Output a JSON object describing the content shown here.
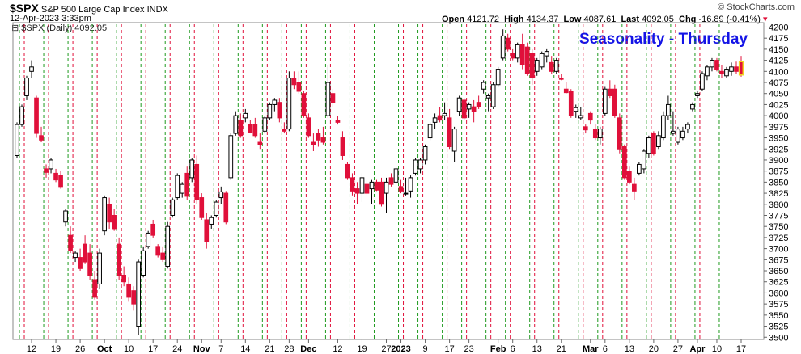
{
  "header": {
    "symbol": "$SPX",
    "name": "S&P 500 Large Cap Index",
    "exchange": "INDX",
    "datetime": "12-Apr-2023 3:33pm",
    "open_label": "Open",
    "open": "4121.72",
    "high_label": "High",
    "high": "4134.37",
    "low_label": "Low",
    "low": "4087.61",
    "last_label": "Last",
    "last": "4092.05",
    "chg_label": "Chg",
    "chg": "-16.89 (-0.41%)",
    "watermark": "© StockCharts.com"
  },
  "legend": {
    "text": "$SPX (Daily) 4092.05"
  },
  "chart_data": {
    "type": "candlestick",
    "title": "Seasonality - Thursday",
    "ylim": [
      3495,
      4210
    ],
    "y_ticks": [
      3500,
      3525,
      3550,
      3575,
      3600,
      3625,
      3650,
      3675,
      3700,
      3725,
      3750,
      3775,
      3800,
      3825,
      3850,
      3875,
      3900,
      3925,
      3950,
      3975,
      4000,
      4025,
      4050,
      4075,
      4100,
      4125,
      4150,
      4175,
      4200
    ],
    "x_ticks": [
      {
        "label": "12",
        "bar": 3,
        "bold": false
      },
      {
        "label": "19",
        "bar": 8,
        "bold": false
      },
      {
        "label": "26",
        "bar": 13,
        "bold": false
      },
      {
        "label": "Oct",
        "bar": 18,
        "bold": true
      },
      {
        "label": "10",
        "bar": 23,
        "bold": false
      },
      {
        "label": "17",
        "bar": 28,
        "bold": false
      },
      {
        "label": "24",
        "bar": 33,
        "bold": false
      },
      {
        "label": "Nov",
        "bar": 38,
        "bold": true
      },
      {
        "label": "7",
        "bar": 42,
        "bold": false
      },
      {
        "label": "14",
        "bar": 47,
        "bold": false
      },
      {
        "label": "21",
        "bar": 52,
        "bold": false
      },
      {
        "label": "28",
        "bar": 56,
        "bold": false
      },
      {
        "label": "Dec",
        "bar": 60,
        "bold": true
      },
      {
        "label": "12",
        "bar": 66,
        "bold": false
      },
      {
        "label": "19",
        "bar": 71,
        "bold": false
      },
      {
        "label": "27",
        "bar": 76,
        "bold": false
      },
      {
        "label": "2023",
        "bar": 79,
        "bold": true
      },
      {
        "label": "9",
        "bar": 84,
        "bold": false
      },
      {
        "label": "17",
        "bar": 89,
        "bold": false
      },
      {
        "label": "23",
        "bar": 93,
        "bold": false
      },
      {
        "label": "Feb",
        "bar": 99,
        "bold": true
      },
      {
        "label": "6",
        "bar": 102,
        "bold": false
      },
      {
        "label": "13",
        "bar": 107,
        "bold": false
      },
      {
        "label": "21",
        "bar": 112,
        "bold": false
      },
      {
        "label": "Mar",
        "bar": 118,
        "bold": true
      },
      {
        "label": "6",
        "bar": 121,
        "bold": false
      },
      {
        "label": "13",
        "bar": 126,
        "bold": false
      },
      {
        "label": "20",
        "bar": 131,
        "bold": false
      },
      {
        "label": "27",
        "bar": 136,
        "bold": false
      },
      {
        "label": "Apr",
        "bar": 140,
        "bold": true
      },
      {
        "label": "10",
        "bar": 144,
        "bold": false
      },
      {
        "label": "17",
        "bar": 149,
        "bold": false
      }
    ],
    "green_line_bars": [
      1,
      6,
      11,
      16,
      21,
      26,
      31,
      36,
      41,
      46,
      51,
      55,
      59,
      64,
      69,
      74,
      79,
      83,
      88,
      92,
      97,
      101,
      106,
      111,
      116,
      120,
      125,
      130,
      135,
      140,
      145
    ],
    "red_line_bars": [
      2,
      7,
      12,
      17,
      22,
      27,
      32,
      37,
      42,
      47,
      52,
      56,
      60,
      65,
      70,
      75,
      80,
      84,
      89,
      93,
      98,
      102,
      107,
      112,
      117,
      121,
      126,
      131,
      136,
      141
    ],
    "candles": [
      {
        "o": 3910,
        "h": 3985,
        "l": 3905,
        "c": 3980
      },
      {
        "o": 3980,
        "h": 4025,
        "l": 3975,
        "c": 4020
      },
      {
        "o": 4045,
        "h": 4090,
        "l": 4035,
        "c": 4085
      },
      {
        "o": 4100,
        "h": 4125,
        "l": 4085,
        "c": 4110
      },
      {
        "o": 4040,
        "h": 4045,
        "l": 3950,
        "c": 3960
      },
      {
        "o": 3955,
        "h": 3975,
        "l": 3940,
        "c": 3945
      },
      {
        "o": 3880,
        "h": 3890,
        "l": 3860,
        "c": 3872
      },
      {
        "o": 3880,
        "h": 3905,
        "l": 3870,
        "c": 3900
      },
      {
        "o": 3870,
        "h": 3880,
        "l": 3850,
        "c": 3855
      },
      {
        "o": 3865,
        "h": 3875,
        "l": 3835,
        "c": 3840
      },
      {
        "o": 3760,
        "h": 3790,
        "l": 3750,
        "c": 3785
      },
      {
        "o": 3730,
        "h": 3750,
        "l": 3690,
        "c": 3695
      },
      {
        "o": 3680,
        "h": 3695,
        "l": 3670,
        "c": 3690
      },
      {
        "o": 3680,
        "h": 3700,
        "l": 3650,
        "c": 3655
      },
      {
        "o": 3710,
        "h": 3730,
        "l": 3665,
        "c": 3670
      },
      {
        "o": 3690,
        "h": 3710,
        "l": 3630,
        "c": 3640
      },
      {
        "o": 3630,
        "h": 3650,
        "l": 3585,
        "c": 3590
      },
      {
        "o": 3620,
        "h": 3700,
        "l": 3610,
        "c": 3690
      },
      {
        "o": 3740,
        "h": 3820,
        "l": 3730,
        "c": 3815
      },
      {
        "o": 3800,
        "h": 3815,
        "l": 3745,
        "c": 3760
      },
      {
        "o": 3775,
        "h": 3790,
        "l": 3740,
        "c": 3745
      },
      {
        "o": 3710,
        "h": 3725,
        "l": 3630,
        "c": 3640
      },
      {
        "o": 3640,
        "h": 3660,
        "l": 3615,
        "c": 3625
      },
      {
        "o": 3620,
        "h": 3635,
        "l": 3580,
        "c": 3590
      },
      {
        "o": 3605,
        "h": 3615,
        "l": 3560,
        "c": 3575
      },
      {
        "o": 3525,
        "h": 3675,
        "l": 3505,
        "c": 3670
      },
      {
        "o": 3640,
        "h": 3705,
        "l": 3635,
        "c": 3695
      },
      {
        "o": 3705,
        "h": 3740,
        "l": 3700,
        "c": 3735
      },
      {
        "o": 3755,
        "h": 3765,
        "l": 3725,
        "c": 3730
      },
      {
        "o": 3705,
        "h": 3710,
        "l": 3680,
        "c": 3685
      },
      {
        "o": 3690,
        "h": 3705,
        "l": 3670,
        "c": 3675
      },
      {
        "o": 3660,
        "h": 3760,
        "l": 3655,
        "c": 3750
      },
      {
        "o": 3775,
        "h": 3815,
        "l": 3770,
        "c": 3810
      },
      {
        "o": 3815,
        "h": 3870,
        "l": 3810,
        "c": 3865
      },
      {
        "o": 3825,
        "h": 3850,
        "l": 3815,
        "c": 3845
      },
      {
        "o": 3870,
        "h": 3885,
        "l": 3810,
        "c": 3818
      },
      {
        "o": 3860,
        "h": 3905,
        "l": 3850,
        "c": 3900
      },
      {
        "o": 3890,
        "h": 3910,
        "l": 3800,
        "c": 3810
      },
      {
        "o": 3815,
        "h": 3825,
        "l": 3765,
        "c": 3770
      },
      {
        "o": 3765,
        "h": 3780,
        "l": 3700,
        "c": 3715
      },
      {
        "o": 3755,
        "h": 3775,
        "l": 3745,
        "c": 3770
      },
      {
        "o": 3775,
        "h": 3810,
        "l": 3770,
        "c": 3805
      },
      {
        "o": 3815,
        "h": 3840,
        "l": 3800,
        "c": 3828
      },
      {
        "o": 3825,
        "h": 3830,
        "l": 3755,
        "c": 3760
      },
      {
        "o": 3860,
        "h": 3960,
        "l": 3855,
        "c": 3955
      },
      {
        "o": 3960,
        "h": 4010,
        "l": 3955,
        "c": 4000
      },
      {
        "o": 3990,
        "h": 4005,
        "l": 3950,
        "c": 3955
      },
      {
        "o": 3995,
        "h": 4015,
        "l": 3985,
        "c": 4005
      },
      {
        "o": 3980,
        "h": 3990,
        "l": 3960,
        "c": 3962
      },
      {
        "o": 3980,
        "h": 3995,
        "l": 3950,
        "c": 3955
      },
      {
        "o": 3940,
        "h": 3960,
        "l": 3925,
        "c": 3935
      },
      {
        "o": 3965,
        "h": 4000,
        "l": 3960,
        "c": 3995
      },
      {
        "o": 3995,
        "h": 4030,
        "l": 3990,
        "c": 4025
      },
      {
        "o": 4025,
        "h": 4040,
        "l": 4010,
        "c": 4035
      },
      {
        "o": 4030,
        "h": 4040,
        "l": 3985,
        "c": 3995
      },
      {
        "o": 3970,
        "h": 3985,
        "l": 3960,
        "c": 3965
      },
      {
        "o": 3970,
        "h": 4100,
        "l": 3965,
        "c": 4085
      },
      {
        "o": 4085,
        "h": 4100,
        "l": 4060,
        "c": 4070
      },
      {
        "o": 4075,
        "h": 4100,
        "l": 4050,
        "c": 4055
      },
      {
        "o": 4050,
        "h": 4055,
        "l": 3995,
        "c": 4000
      },
      {
        "o": 3995,
        "h": 4005,
        "l": 3950,
        "c": 3955
      },
      {
        "o": 3940,
        "h": 3960,
        "l": 3920,
        "c": 3935
      },
      {
        "o": 3960,
        "h": 3970,
        "l": 3930,
        "c": 3945
      },
      {
        "o": 3950,
        "h": 3975,
        "l": 3935,
        "c": 3940
      },
      {
        "o": 4000,
        "h": 4115,
        "l": 3995,
        "c": 4075
      },
      {
        "o": 4050,
        "h": 4060,
        "l": 4020,
        "c": 4030
      },
      {
        "o": 3990,
        "h": 4000,
        "l": 3980,
        "c": 3985
      },
      {
        "o": 3950,
        "h": 3965,
        "l": 3900,
        "c": 3910
      },
      {
        "o": 3890,
        "h": 3895,
        "l": 3855,
        "c": 3860
      },
      {
        "o": 3860,
        "h": 3870,
        "l": 3820,
        "c": 3830
      },
      {
        "o": 3835,
        "h": 3850,
        "l": 3800,
        "c": 3825
      },
      {
        "o": 3825,
        "h": 3870,
        "l": 3805,
        "c": 3860
      },
      {
        "o": 3845,
        "h": 3855,
        "l": 3820,
        "c": 3825
      },
      {
        "o": 3835,
        "h": 3855,
        "l": 3800,
        "c": 3850
      },
      {
        "o": 3850,
        "h": 3855,
        "l": 3830,
        "c": 3832
      },
      {
        "o": 3850,
        "h": 3860,
        "l": 3795,
        "c": 3800
      },
      {
        "o": 3825,
        "h": 3860,
        "l": 3780,
        "c": 3850
      },
      {
        "o": 3860,
        "h": 3870,
        "l": 3840,
        "c": 3845
      },
      {
        "o": 3850,
        "h": 3885,
        "l": 3845,
        "c": 3880
      },
      {
        "o": 3840,
        "h": 3855,
        "l": 3825,
        "c": 3830
      },
      {
        "o": 3825,
        "h": 3860,
        "l": 3820,
        "c": 3825
      },
      {
        "o": 3830,
        "h": 3865,
        "l": 3815,
        "c": 3860
      },
      {
        "o": 3870,
        "h": 3905,
        "l": 3865,
        "c": 3900
      },
      {
        "o": 3880,
        "h": 3905,
        "l": 3870,
        "c": 3900
      },
      {
        "o": 3900,
        "h": 3935,
        "l": 3890,
        "c": 3930
      },
      {
        "o": 3950,
        "h": 3985,
        "l": 3945,
        "c": 3980
      },
      {
        "o": 3985,
        "h": 4005,
        "l": 3970,
        "c": 3995
      },
      {
        "o": 4000,
        "h": 4020,
        "l": 3985,
        "c": 3990
      },
      {
        "o": 4000,
        "h": 4030,
        "l": 3990,
        "c": 4005
      },
      {
        "o": 3995,
        "h": 4015,
        "l": 3925,
        "c": 3930
      },
      {
        "o": 3920,
        "h": 3975,
        "l": 3895,
        "c": 3970
      },
      {
        "o": 4010,
        "h": 4045,
        "l": 4000,
        "c": 4040
      },
      {
        "o": 4035,
        "h": 4040,
        "l": 3990,
        "c": 3995
      },
      {
        "o": 4015,
        "h": 4030,
        "l": 3995,
        "c": 4025
      },
      {
        "o": 4020,
        "h": 4035,
        "l": 3985,
        "c": 4010
      },
      {
        "o": 4030,
        "h": 4045,
        "l": 4015,
        "c": 4020
      },
      {
        "o": 4060,
        "h": 4080,
        "l": 4050,
        "c": 4075
      },
      {
        "o": 4040,
        "h": 4050,
        "l": 4010,
        "c": 4045
      },
      {
        "o": 4020,
        "h": 4075,
        "l": 4015,
        "c": 4070
      },
      {
        "o": 4070,
        "h": 4110,
        "l": 4065,
        "c": 4105
      },
      {
        "o": 4130,
        "h": 4195,
        "l": 4125,
        "c": 4180
      },
      {
        "o": 4175,
        "h": 4185,
        "l": 4145,
        "c": 4150
      },
      {
        "o": 4140,
        "h": 4150,
        "l": 4125,
        "c": 4130
      },
      {
        "o": 4130,
        "h": 4165,
        "l": 4120,
        "c": 4160
      },
      {
        "o": 4160,
        "h": 4185,
        "l": 4105,
        "c": 4115
      },
      {
        "o": 4155,
        "h": 4165,
        "l": 4090,
        "c": 4095
      },
      {
        "o": 4140,
        "h": 4150,
        "l": 4070,
        "c": 4085
      },
      {
        "o": 4100,
        "h": 4130,
        "l": 4090,
        "c": 4125
      },
      {
        "o": 4110,
        "h": 4145,
        "l": 4105,
        "c": 4140
      },
      {
        "o": 4135,
        "h": 4150,
        "l": 4120,
        "c": 4145
      },
      {
        "o": 4120,
        "h": 4135,
        "l": 4095,
        "c": 4100
      },
      {
        "o": 4100,
        "h": 4130,
        "l": 4095,
        "c": 4125
      },
      {
        "o": 4085,
        "h": 4095,
        "l": 4080,
        "c": 4082
      },
      {
        "o": 4060,
        "h": 4075,
        "l": 4050,
        "c": 4052
      },
      {
        "o": 4055,
        "h": 4060,
        "l": 3995,
        "c": 4000
      },
      {
        "o": 4010,
        "h": 4025,
        "l": 3995,
        "c": 4018
      },
      {
        "o": 3995,
        "h": 4020,
        "l": 3990,
        "c": 4000
      },
      {
        "o": 3975,
        "h": 3980,
        "l": 3960,
        "c": 3968
      },
      {
        "o": 4005,
        "h": 4010,
        "l": 3980,
        "c": 3990
      },
      {
        "o": 3970,
        "h": 3980,
        "l": 3945,
        "c": 3950
      },
      {
        "o": 3950,
        "h": 3975,
        "l": 3935,
        "c": 3970
      },
      {
        "o": 4005,
        "h": 4065,
        "l": 4000,
        "c": 4060
      },
      {
        "o": 4060,
        "h": 4080,
        "l": 4040,
        "c": 4045
      },
      {
        "o": 4060,
        "h": 4070,
        "l": 3995,
        "c": 4000
      },
      {
        "o": 3995,
        "h": 4005,
        "l": 3915,
        "c": 3925
      },
      {
        "o": 3930,
        "h": 3935,
        "l": 3855,
        "c": 3860
      },
      {
        "o": 3875,
        "h": 3885,
        "l": 3845,
        "c": 3850
      },
      {
        "o": 3845,
        "h": 3860,
        "l": 3810,
        "c": 3830
      },
      {
        "o": 3870,
        "h": 3895,
        "l": 3865,
        "c": 3890
      },
      {
        "o": 3880,
        "h": 3925,
        "l": 3870,
        "c": 3920
      },
      {
        "o": 3915,
        "h": 3955,
        "l": 3905,
        "c": 3950
      },
      {
        "o": 3960,
        "h": 3965,
        "l": 3910,
        "c": 3915
      },
      {
        "o": 3930,
        "h": 3965,
        "l": 3925,
        "c": 3955
      },
      {
        "o": 3950,
        "h": 4010,
        "l": 3945,
        "c": 4000
      },
      {
        "o": 4000,
        "h": 4045,
        "l": 3990,
        "c": 4025
      },
      {
        "o": 3960,
        "h": 4010,
        "l": 3955,
        "c": 3965
      },
      {
        "o": 3940,
        "h": 3975,
        "l": 3935,
        "c": 3970
      },
      {
        "o": 3950,
        "h": 3975,
        "l": 3945,
        "c": 3965
      },
      {
        "o": 3970,
        "h": 3985,
        "l": 3960,
        "c": 3980
      },
      {
        "o": 4015,
        "h": 4030,
        "l": 4010,
        "c": 4025
      },
      {
        "o": 4045,
        "h": 4055,
        "l": 4040,
        "c": 4050
      },
      {
        "o": 4060,
        "h": 4100,
        "l": 4055,
        "c": 4095
      },
      {
        "o": 4090,
        "h": 4115,
        "l": 4080,
        "c": 4110
      },
      {
        "o": 4110,
        "h": 4130,
        "l": 4100,
        "c": 4125
      },
      {
        "o": 4125,
        "h": 4130,
        "l": 4100,
        "c": 4105
      },
      {
        "o": 4100,
        "h": 4115,
        "l": 4085,
        "c": 4095
      },
      {
        "o": 4090,
        "h": 4110,
        "l": 4085,
        "c": 4105
      },
      {
        "o": 4100,
        "h": 4120,
        "l": 4090,
        "c": 4110
      },
      {
        "o": 4110,
        "h": 4122,
        "l": 4095,
        "c": 4100
      },
      {
        "o": 4122,
        "h": 4135,
        "l": 4088,
        "c": 4092
      }
    ],
    "colors": {
      "up_edge": "#000000",
      "up_fill": "#ffffff",
      "down": "#e0103a",
      "green_line": "#1f9a1f",
      "red_line": "#e0103a",
      "last_bar": "#f2d41f",
      "title": "#1414e6"
    }
  }
}
